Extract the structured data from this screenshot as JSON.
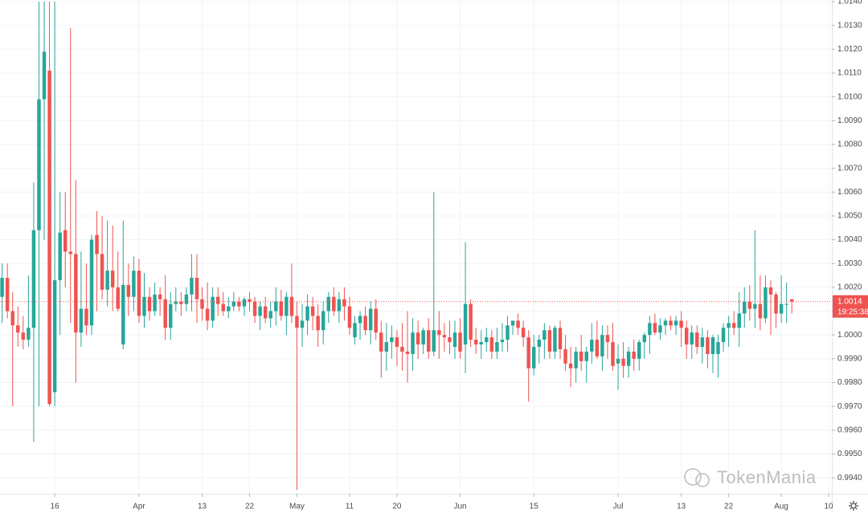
{
  "chart_data": {
    "type": "candlestick",
    "up_color": "#26a69a",
    "down_color": "#ef5350",
    "grid": true,
    "xlim": [
      -0.4,
      157.6
    ],
    "xticks": [
      {
        "value": 10,
        "label": "16"
      },
      {
        "value": 26,
        "label": "Apr"
      },
      {
        "value": 38,
        "label": "13"
      },
      {
        "value": 47,
        "label": "22"
      },
      {
        "value": 56,
        "label": "May"
      },
      {
        "value": 66,
        "label": "11"
      },
      {
        "value": 75,
        "label": "20"
      },
      {
        "value": 87,
        "label": "Jun"
      },
      {
        "value": 101,
        "label": "15"
      },
      {
        "value": 117,
        "label": "Jul"
      },
      {
        "value": 129,
        "label": "13"
      },
      {
        "value": 138,
        "label": "22"
      },
      {
        "value": 148,
        "label": "Aug"
      },
      {
        "value": 157,
        "label": "10"
      }
    ],
    "ylim": [
      0.99333,
      1.01407
    ],
    "yticks": [
      {
        "value": 0.994,
        "label": "0.9940"
      },
      {
        "value": 0.995,
        "label": "0.9950"
      },
      {
        "value": 0.996,
        "label": "0.9960"
      },
      {
        "value": 0.997,
        "label": "0.9970"
      },
      {
        "value": 0.998,
        "label": "0.9980"
      },
      {
        "value": 0.999,
        "label": "0.9990"
      },
      {
        "value": 1.0,
        "label": "1.0000"
      },
      {
        "value": 1.001,
        "label": "1.0010"
      },
      {
        "value": 1.002,
        "label": "1.0020"
      },
      {
        "value": 1.003,
        "label": "1.0030"
      },
      {
        "value": 1.004,
        "label": "1.0040"
      },
      {
        "value": 1.005,
        "label": "1.0050"
      },
      {
        "value": 1.006,
        "label": "1.0060"
      },
      {
        "value": 1.007,
        "label": "1.0070"
      },
      {
        "value": 1.008,
        "label": "1.0080"
      },
      {
        "value": 1.009,
        "label": "1.0090"
      },
      {
        "value": 1.01,
        "label": "1.0100"
      },
      {
        "value": 1.011,
        "label": "1.0110"
      },
      {
        "value": 1.012,
        "label": "1.0120"
      },
      {
        "value": 1.013,
        "label": "1.0130"
      },
      {
        "value": 1.014,
        "label": "1.0140"
      }
    ],
    "last_price": 1.0014,
    "countdown": "19:25:38",
    "watermark": "TokenMania",
    "open": [
      1.0016,
      1.0024,
      1.001,
      1.0004,
      1.0001,
      0.9998,
      1.0003,
      1.0044,
      1.0099,
      1.0111,
      0.9976,
      1.0023,
      1.0044,
      1.0035,
      1.0034,
      1.0001,
      1.0011,
      1.0004,
      1.0042,
      1.0034,
      1.0019,
      1.0027,
      1.002,
      0.9996,
      1.0021,
      1.0016,
      1.0027,
      1.0008,
      1.0016,
      1.001,
      1.0017,
      1.0015,
      1.0003,
      1.0013,
      1.0014,
      1.0013,
      1.0017,
      1.0024,
      1.0015,
      1.0011,
      1.0006,
      1.0016,
      1.0013,
      1.001,
      1.0012,
      1.0014,
      1.0012,
      1.0015,
      1.0014,
      1.0008,
      1.0012,
      1.0007,
      1.001,
      1.0014,
      1.0008,
      1.0016,
      1.0008,
      1.0003,
      1.0006,
      1.0012,
      1.0008,
      1.0002,
      1.001,
      1.0016,
      1.001,
      1.0015,
      1.0012,
      0.9999,
      1.0005,
      1.0008,
      1.0002,
      1.0011,
      1.0001,
      0.9993,
      0.9997,
      0.9999,
      0.9995,
      0.9993,
      0.9992,
      1.0001,
      0.9996,
      1.0002,
      0.9993,
      1.0002,
      1.0,
      0.9999,
      0.9995,
      1.0001,
      0.9996,
      1.0013,
      0.9998,
      0.9996,
      0.9997,
      0.9999,
      0.9993,
      0.9997,
      0.9998,
      1.0004,
      1.0006,
      1.0003,
      0.9999,
      0.9986,
      0.9995,
      0.9998,
      1.0002,
      0.9993,
      1.0003,
      0.9994,
      0.9988,
      0.9986,
      0.9993,
      0.9989,
      0.9993,
      0.9998,
      0.9991,
      1.0,
      0.9997,
      0.9988,
      0.999,
      0.9987,
      0.9993,
      0.999,
      0.9997,
      1.0,
      1.0005,
      1.0001,
      1.0004,
      1.0006,
      1.0004,
      1.0006,
      1.0003,
      0.9996,
      1.0001,
      0.9995,
      0.9999,
      0.9992,
      0.9992,
      0.9997,
      1.0003,
      1.0005,
      1.0003,
      1.0009,
      1.0014,
      1.0011,
      1.0013,
      1.0007,
      1.002,
      1.0017,
      1.0009,
      1.0013,
      1.0015
    ],
    "high": [
      1.003,
      1.003,
      1.0018,
      1.0012,
      1.0008,
      1.0025,
      1.0064,
      1.014,
      1.014,
      1.014,
      1.014,
      1.006,
      1.006,
      1.0129,
      1.0065,
      1.0035,
      1.003,
      1.0042,
      1.0052,
      1.005,
      1.0048,
      1.0046,
      1.0035,
      1.0048,
      1.003,
      1.0033,
      1.0032,
      1.0026,
      1.002,
      1.0022,
      1.002,
      1.0025,
      1.0018,
      1.002,
      1.0018,
      1.002,
      1.0034,
      1.0034,
      1.002,
      1.0022,
      1.002,
      1.002,
      1.0018,
      1.0016,
      1.0018,
      1.0016,
      1.0016,
      1.0018,
      1.0016,
      1.0014,
      1.0016,
      1.0014,
      1.002,
      1.0019,
      1.0018,
      1.003,
      1.0014,
      1.0013,
      1.0017,
      1.0016,
      1.0013,
      1.0014,
      1.0018,
      1.002,
      1.0018,
      1.002,
      1.0016,
      1.0008,
      1.001,
      1.0012,
      1.0014,
      1.0015,
      1.0006,
      1.0005,
      1.0004,
      1.0002,
      1.0005,
      1.001,
      1.0007,
      1.0006,
      1.0003,
      1.0007,
      1.006,
      1.001,
      1.0005,
      1.0006,
      1.0006,
      1.0007,
      1.0039,
      1.0015,
      1.0003,
      1.0002,
      1.0003,
      1.0002,
      1.0003,
      1.0005,
      1.0008,
      1.0006,
      1.0009,
      1.0006,
      1.0002,
      1.0,
      1.0,
      1.0005,
      1.0004,
      1.0004,
      1.0006,
      1.0,
      0.9995,
      0.9995,
      1.0,
      0.9995,
      1.0005,
      1.0006,
      1.0004,
      1.0004,
      1.0005,
      0.9996,
      0.9997,
      0.9995,
      0.9998,
      0.9998,
      1.0001,
      1.0008,
      1.0009,
      1.0007,
      1.0007,
      1.0008,
      1.0008,
      1.001,
      1.0006,
      1.0004,
      1.0004,
      1.0003,
      1.0002,
      1.0,
      1.0,
      1.0005,
      1.0008,
      1.001,
      1.0018,
      1.002,
      1.0021,
      1.0044,
      1.0025,
      1.0025,
      1.0023,
      1.0018,
      1.0025,
      1.0022,
      1.0015
    ],
    "low": [
      1.0005,
      1.0007,
      0.997,
      0.9995,
      0.9994,
      0.9995,
      0.9955,
      0.997,
      1.004,
      0.997,
      0.997,
      1.0,
      1.002,
      1.0005,
      0.998,
      0.9995,
      1.0,
      1.0,
      1.001,
      1.0015,
      1.0012,
      1.001,
      1.001,
      0.9994,
      1.0008,
      1.001,
      1.0005,
      1.0003,
      1.0006,
      1.0008,
      1.0008,
      0.9998,
      0.9998,
      1.001,
      1.0008,
      1.001,
      1.001,
      1.0005,
      1.0006,
      1.0002,
      1.0003,
      1.0008,
      1.0008,
      1.0007,
      1.001,
      1.001,
      1.0008,
      1.001,
      1.0005,
      1.0002,
      1.0005,
      1.0003,
      1.0004,
      1.0006,
      1.0,
      1.0005,
      0.9935,
      0.9995,
      1.0,
      1.0002,
      0.9995,
      0.9996,
      1.0005,
      1.0008,
      1.0005,
      1.0006,
      1.0,
      0.9996,
      0.9998,
      1.0,
      0.9996,
      0.9998,
      0.9982,
      0.9985,
      0.999,
      0.9987,
      0.9985,
      0.998,
      0.9985,
      0.999,
      0.9992,
      0.999,
      0.9991,
      0.999,
      0.9993,
      0.9992,
      0.999,
      0.999,
      0.9984,
      0.9995,
      0.9992,
      0.999,
      0.9993,
      0.999,
      0.999,
      0.9993,
      0.9993,
      1.0,
      1.0,
      0.9995,
      0.9972,
      0.9983,
      0.9988,
      0.999,
      0.999,
      0.999,
      0.999,
      0.9985,
      0.9978,
      0.998,
      0.9985,
      0.998,
      0.9988,
      0.999,
      0.9985,
      0.999,
      0.9985,
      0.9977,
      0.9982,
      0.9982,
      0.9985,
      0.9985,
      0.999,
      0.9992,
      1.0,
      0.9998,
      1.0,
      1.0002,
      1.0,
      0.9995,
      0.999,
      0.999,
      0.9992,
      0.9988,
      0.9986,
      0.9984,
      0.9982,
      0.9993,
      0.9995,
      1.0,
      0.9995,
      1.0003,
      1.0006,
      1.0003,
      1.0002,
      1.0005,
      1.0,
      1.0003,
      1.0005,
      1.0005,
      1.0009
    ],
    "close": [
      1.0024,
      1.001,
      1.0004,
      1.0001,
      0.9998,
      1.0003,
      1.0044,
      1.0099,
      1.0119,
      0.9971,
      1.0023,
      1.0043,
      1.0035,
      1.0034,
      1.0001,
      1.0011,
      1.0004,
      1.004,
      1.0034,
      1.0019,
      1.0027,
      1.002,
      1.0011,
      1.0021,
      1.0016,
      1.0027,
      1.0008,
      1.0016,
      1.001,
      1.0017,
      1.0015,
      1.0003,
      1.0013,
      1.0014,
      1.0013,
      1.0017,
      1.0024,
      1.0015,
      1.0011,
      1.0006,
      1.0016,
      1.0013,
      1.001,
      1.0012,
      1.0014,
      1.0012,
      1.0015,
      1.0014,
      1.0008,
      1.0012,
      1.0007,
      1.001,
      1.0014,
      1.0008,
      1.0016,
      1.0008,
      1.0003,
      1.0006,
      1.0012,
      1.0008,
      1.0002,
      1.001,
      1.0016,
      1.001,
      1.0015,
      1.0012,
      1.0003,
      1.0005,
      1.0008,
      1.0002,
      1.0011,
      1.0001,
      0.9993,
      0.9997,
      0.9999,
      0.9995,
      0.9993,
      0.9992,
      1.0001,
      0.9996,
      1.0002,
      0.9993,
      1.0002,
      1.0,
      0.9999,
      0.9997,
      1.0001,
      0.9993,
      1.0013,
      0.9998,
      0.9996,
      0.9997,
      0.9999,
      0.9993,
      0.9997,
      0.9998,
      1.0004,
      1.0006,
      1.0003,
      0.9999,
      0.9986,
      0.9995,
      0.9998,
      1.0002,
      0.9993,
      1.0003,
      0.9994,
      0.9988,
      0.9986,
      0.9993,
      0.9989,
      0.9993,
      0.9998,
      0.9991,
      1.0,
      0.9997,
      0.9987,
      0.999,
      0.9987,
      0.9993,
      0.999,
      0.9997,
      1.0,
      1.0005,
      1.0001,
      1.0004,
      1.0006,
      1.0004,
      1.0006,
      1.0003,
      0.9996,
      1.0001,
      0.9995,
      0.9999,
      0.9992,
      0.9999,
      0.9997,
      1.0003,
      1.0005,
      1.0003,
      1.0009,
      1.0014,
      1.0011,
      1.0013,
      1.0007,
      1.002,
      1.0017,
      1.0009,
      1.0013,
      1.0013,
      1.0014
    ]
  }
}
